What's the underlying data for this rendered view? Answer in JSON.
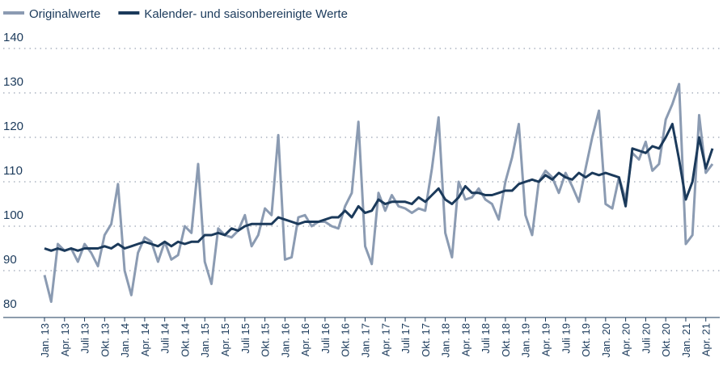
{
  "chart_data": {
    "type": "line",
    "categories": [
      "Jan. 13",
      null,
      null,
      "Apr. 13",
      null,
      null,
      "Juli 13",
      null,
      null,
      "Okt. 13",
      null,
      null,
      "Jan. 14",
      null,
      null,
      "Apr. 14",
      null,
      null,
      "Juli 14",
      null,
      null,
      "Okt. 14",
      null,
      null,
      "Jan. 15",
      null,
      null,
      "Apr. 15",
      null,
      null,
      "Juli 15",
      null,
      null,
      "Okt. 15",
      null,
      null,
      "Jan. 16",
      null,
      null,
      "Apr. 16",
      null,
      null,
      "Juli 16",
      null,
      null,
      "Okt. 16",
      null,
      null,
      "Jan. 17",
      null,
      null,
      "Apr. 17",
      null,
      null,
      "Juli 17",
      null,
      null,
      "Okt. 17",
      null,
      null,
      "Jan. 18",
      null,
      null,
      "Apr. 18",
      null,
      null,
      "Juli 18",
      null,
      null,
      "Okt. 18",
      null,
      null,
      "Jan. 19",
      null,
      null,
      "Apr. 19",
      null,
      null,
      "Juli 19",
      null,
      null,
      "Okt. 19",
      null,
      null,
      "Jan. 20",
      null,
      null,
      "Apr. 20",
      null,
      null,
      "Juli 20",
      null,
      null,
      "Okt. 20",
      null,
      null,
      "Jan. 21",
      null,
      null,
      "Apr. 21",
      null
    ],
    "series": [
      {
        "name": "Originalwerte",
        "color": "#8b9bb2",
        "values": [
          89,
          83,
          96,
          94.5,
          95,
          92,
          96,
          94,
          91,
          98,
          100.5,
          109.5,
          90,
          84.5,
          94,
          97.5,
          96.5,
          92,
          96.5,
          92.5,
          93.5,
          100,
          98.5,
          114,
          92,
          87,
          99.5,
          98,
          97.5,
          99,
          102.5,
          95.5,
          98,
          104,
          102.5,
          120.5,
          92.5,
          93,
          102,
          102.5,
          100,
          101,
          101,
          100,
          99.5,
          104.5,
          107.5,
          123.5,
          95.5,
          91.5,
          107.5,
          103.5,
          107,
          104.5,
          104,
          103,
          104,
          103.5,
          113,
          124.5,
          98.5,
          93,
          110,
          106,
          106.5,
          108.5,
          106,
          105,
          101.5,
          110,
          115.5,
          123,
          102.5,
          98,
          110,
          112.5,
          111,
          107.5,
          112,
          109,
          105.5,
          113,
          120,
          126,
          105,
          104,
          111,
          106,
          116.5,
          115,
          119,
          112.5,
          114,
          124,
          127.5,
          132,
          96,
          98,
          125,
          112,
          114
        ]
      },
      {
        "name": "Kalender- und saisonbereinigte Werte",
        "color": "#1b3a5b",
        "values": [
          95,
          94.5,
          95,
          94.5,
          95,
          94.5,
          95,
          95,
          95,
          95.5,
          95,
          96,
          95,
          95.5,
          96,
          96.5,
          96,
          95.5,
          96.5,
          95.5,
          96.5,
          96,
          96.5,
          96.5,
          98,
          98,
          98.5,
          98,
          99.5,
          99,
          100,
          100.5,
          100.5,
          100.5,
          100.5,
          102,
          101.5,
          101,
          100.5,
          101,
          101,
          101,
          101.5,
          102,
          102,
          103.5,
          102,
          104.5,
          103,
          103.5,
          106,
          105,
          105.5,
          105.5,
          105.5,
          105,
          106.5,
          105.5,
          107,
          108.5,
          106,
          105,
          106.5,
          109,
          107.5,
          107.5,
          107,
          107,
          107.5,
          108,
          108,
          109.5,
          110,
          110.5,
          110,
          111.5,
          110.5,
          112,
          111,
          110.5,
          112,
          111,
          112,
          111.5,
          112,
          111.5,
          111,
          104.5,
          117.5,
          117,
          116.5,
          118,
          117.5,
          120,
          123,
          115,
          106,
          110,
          120,
          113,
          117.5
        ]
      }
    ],
    "ylim": [
      80,
      140
    ],
    "yticks": [
      80,
      90,
      100,
      110,
      120,
      130,
      140
    ],
    "grid": true,
    "legend": "top"
  }
}
